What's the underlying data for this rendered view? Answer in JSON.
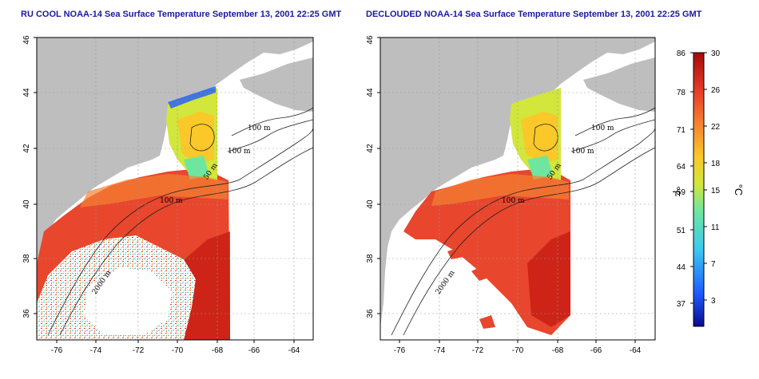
{
  "panels": {
    "left": {
      "title": "RU COOL NOAA-14 Sea Surface Temperature September 13, 2001 22:25 GMT"
    },
    "right": {
      "title": "DECLOUDED NOAA-14 Sea Surface Temperature September 13, 2001 22:25 GMT"
    }
  },
  "axes": {
    "lon_ticks": [
      "-76",
      "-74",
      "-72",
      "-70",
      "-68",
      "-66",
      "-64"
    ],
    "lat_ticks": [
      "36",
      "38",
      "40",
      "42",
      "44",
      "46"
    ]
  },
  "contours": {
    "labels": [
      "100 m",
      "100 m",
      "50 m",
      "100 m",
      "2000 m",
      "100 m",
      "100 m",
      "50 m",
      "100 m",
      "2000 m"
    ]
  },
  "colorbar": {
    "fahrenheit_unit": "°F",
    "celsius_unit": "°C",
    "fahrenheit_labels": [
      "86",
      "78",
      "71",
      "64",
      "59",
      "51",
      "44",
      "37"
    ],
    "celsius_labels": [
      "30",
      "26",
      "22",
      "18",
      "15",
      "11",
      "7",
      "3"
    ],
    "colors": [
      "#0a0a8c",
      "#1e5aff",
      "#3cc8f0",
      "#6ee6a0",
      "#d2e63c",
      "#fac828",
      "#f58232",
      "#e63c28",
      "#a50a0a"
    ]
  },
  "colors": {
    "land": "#bebebe",
    "water_warm": "#e8462d",
    "cloud": "#ffffff"
  }
}
